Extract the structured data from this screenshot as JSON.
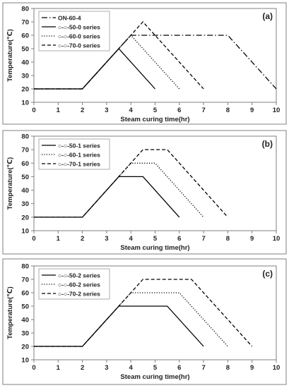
{
  "chart_data": [
    {
      "type": "line",
      "panel_label": "(a)",
      "xlabel": "Steam curing time(hr)",
      "ylabel": "Temperature(℃)",
      "xlim": [
        0,
        10
      ],
      "ylim": [
        10,
        80
      ],
      "xticks": [
        0,
        1,
        2,
        3,
        4,
        5,
        6,
        7,
        8,
        9,
        10
      ],
      "yticks": [
        10,
        20,
        30,
        40,
        50,
        60,
        70,
        80
      ],
      "grid": false,
      "legend_position": "top-left",
      "series": [
        {
          "name": "ON-60-4",
          "dash": "dashdot",
          "x": [
            0,
            2,
            4,
            8,
            10
          ],
          "y": [
            20,
            20,
            60,
            60,
            20
          ]
        },
        {
          "name": "○-○-50-0 series",
          "dash": "solid",
          "x": [
            0,
            2,
            3.5,
            5
          ],
          "y": [
            20,
            20,
            50,
            20
          ]
        },
        {
          "name": "○-○-60-0 series",
          "dash": "dotted",
          "x": [
            0,
            2,
            4,
            6
          ],
          "y": [
            20,
            20,
            60,
            20
          ]
        },
        {
          "name": "○-○-70-0 series",
          "dash": "dashed",
          "x": [
            0,
            2,
            4.5,
            7
          ],
          "y": [
            20,
            20,
            70,
            20
          ]
        }
      ]
    },
    {
      "type": "line",
      "panel_label": "(b)",
      "xlabel": "Steam curing time(hr)",
      "ylabel": "Temperature(℃)",
      "xlim": [
        0,
        10
      ],
      "ylim": [
        10,
        80
      ],
      "xticks": [
        0,
        1,
        2,
        3,
        4,
        5,
        6,
        7,
        8,
        9,
        10
      ],
      "yticks": [
        10,
        20,
        30,
        40,
        50,
        60,
        70,
        80
      ],
      "grid": false,
      "legend_position": "top-left",
      "series": [
        {
          "name": "○-○-50-1 series",
          "dash": "solid",
          "x": [
            0,
            2,
            3.5,
            4.5,
            6
          ],
          "y": [
            20,
            20,
            50,
            50,
            20
          ]
        },
        {
          "name": "○-○-60-1 series",
          "dash": "dotted",
          "x": [
            0,
            2,
            4,
            5,
            7
          ],
          "y": [
            20,
            20,
            60,
            60,
            20
          ]
        },
        {
          "name": "○-○-70-1 series",
          "dash": "dashed",
          "x": [
            0,
            2,
            4.5,
            5.5,
            8
          ],
          "y": [
            20,
            20,
            70,
            70,
            20
          ]
        }
      ]
    },
    {
      "type": "line",
      "panel_label": "(c)",
      "xlabel": "Steam curing time(hr)",
      "ylabel": "Temperature(℃)",
      "xlim": [
        0,
        10
      ],
      "ylim": [
        10,
        80
      ],
      "xticks": [
        0,
        1,
        2,
        3,
        4,
        5,
        6,
        7,
        8,
        9,
        10
      ],
      "yticks": [
        10,
        20,
        30,
        40,
        50,
        60,
        70,
        80
      ],
      "grid": false,
      "legend_position": "top-left",
      "series": [
        {
          "name": "○-○-50-2 series",
          "dash": "solid",
          "x": [
            0,
            2,
            3.5,
            5.5,
            7
          ],
          "y": [
            20,
            20,
            50,
            50,
            20
          ]
        },
        {
          "name": "○-○-60-2 series",
          "dash": "dotted",
          "x": [
            0,
            2,
            4,
            6,
            8
          ],
          "y": [
            20,
            20,
            60,
            60,
            20
          ]
        },
        {
          "name": "○-○-70-2 series",
          "dash": "dashed",
          "x": [
            0,
            2,
            4.5,
            6.5,
            9
          ],
          "y": [
            20,
            20,
            70,
            70,
            20
          ]
        }
      ]
    }
  ]
}
